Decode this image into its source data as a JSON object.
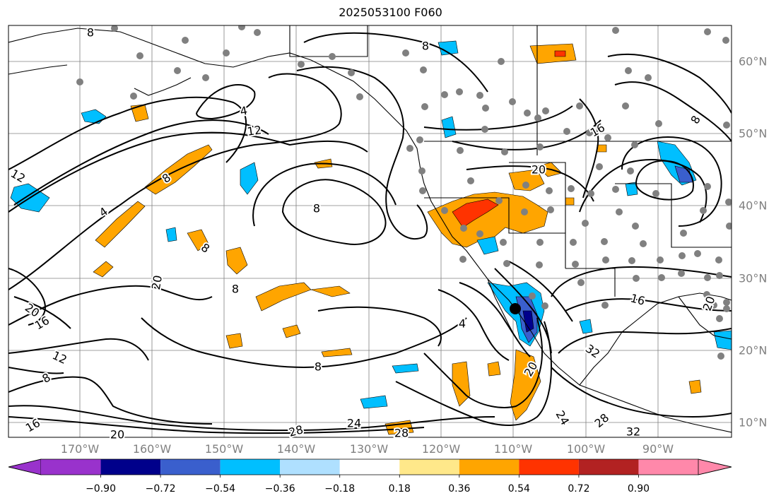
{
  "title": "2025053100 F060",
  "lon_ticks": [
    "170°W",
    "160°W",
    "150°W",
    "140°W",
    "130°W",
    "120°W",
    "110°W",
    "100°W",
    "90°W"
  ],
  "lat_ticks": [
    "60°N",
    "50°N",
    "40°N",
    "30°N",
    "20°N",
    "10°N"
  ],
  "colorbar": {
    "tick_labels": [
      "−0.90",
      "−0.72",
      "−0.54",
      "−0.36",
      "−0.18",
      "0.18",
      "0.36",
      "0.54",
      "0.72",
      "0.90"
    ],
    "colors": [
      "#9932cc",
      "#00008b",
      "#3a5fcd",
      "#00bfff",
      "#afe0ff",
      "#ffffff",
      "#ffe88a",
      "#ffa500",
      "#ff3300",
      "#b22222",
      "#ff88aa"
    ]
  },
  "contour_labels": [
    "8",
    "4",
    "12",
    "8",
    "4",
    "12",
    "8",
    "8",
    "20",
    "16",
    "20",
    "12",
    "8",
    "8",
    "8",
    "4",
    "20",
    "24",
    "28",
    "28",
    "32",
    "32",
    "28",
    "24",
    "16",
    "16",
    "20",
    "8",
    "8",
    "20",
    "16",
    "20"
  ],
  "colors": {
    "land": "#000000",
    "contour": "#000000",
    "grid": "#808080",
    "station_dot": "#808080",
    "positive_light": "#ffe88a",
    "positive_mid": "#ffa500",
    "positive_strong": "#ff3300",
    "negative_light": "#afe0ff",
    "negative_mid": "#00bfff",
    "negative_strong": "#3a5fcd"
  }
}
